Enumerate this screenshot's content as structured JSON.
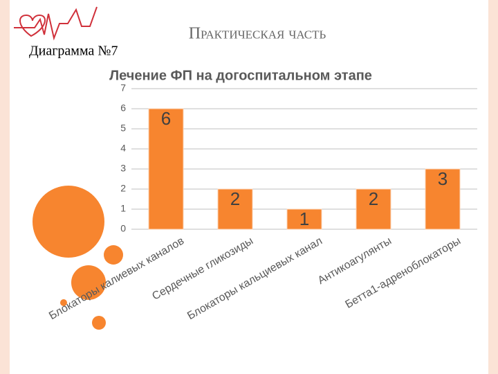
{
  "slide_title": "Практическая часть",
  "caption": "Диаграмма №7",
  "chart_data": {
    "type": "bar",
    "title": "Лечение ФП на догоспитальном этапе",
    "categories": [
      "Блокаторы калиевых каналов",
      "Сердечные гликозиды",
      "Блокаторы кальциевых канал",
      "Антикоагулянты",
      "Бетта1-адреноблокаторы"
    ],
    "values": [
      6,
      2,
      1,
      2,
      3
    ],
    "color": "#f7852f",
    "ylim": [
      0,
      7
    ],
    "yticks": [
      0,
      1,
      2,
      3,
      4,
      5,
      6,
      7
    ],
    "grid": true
  }
}
